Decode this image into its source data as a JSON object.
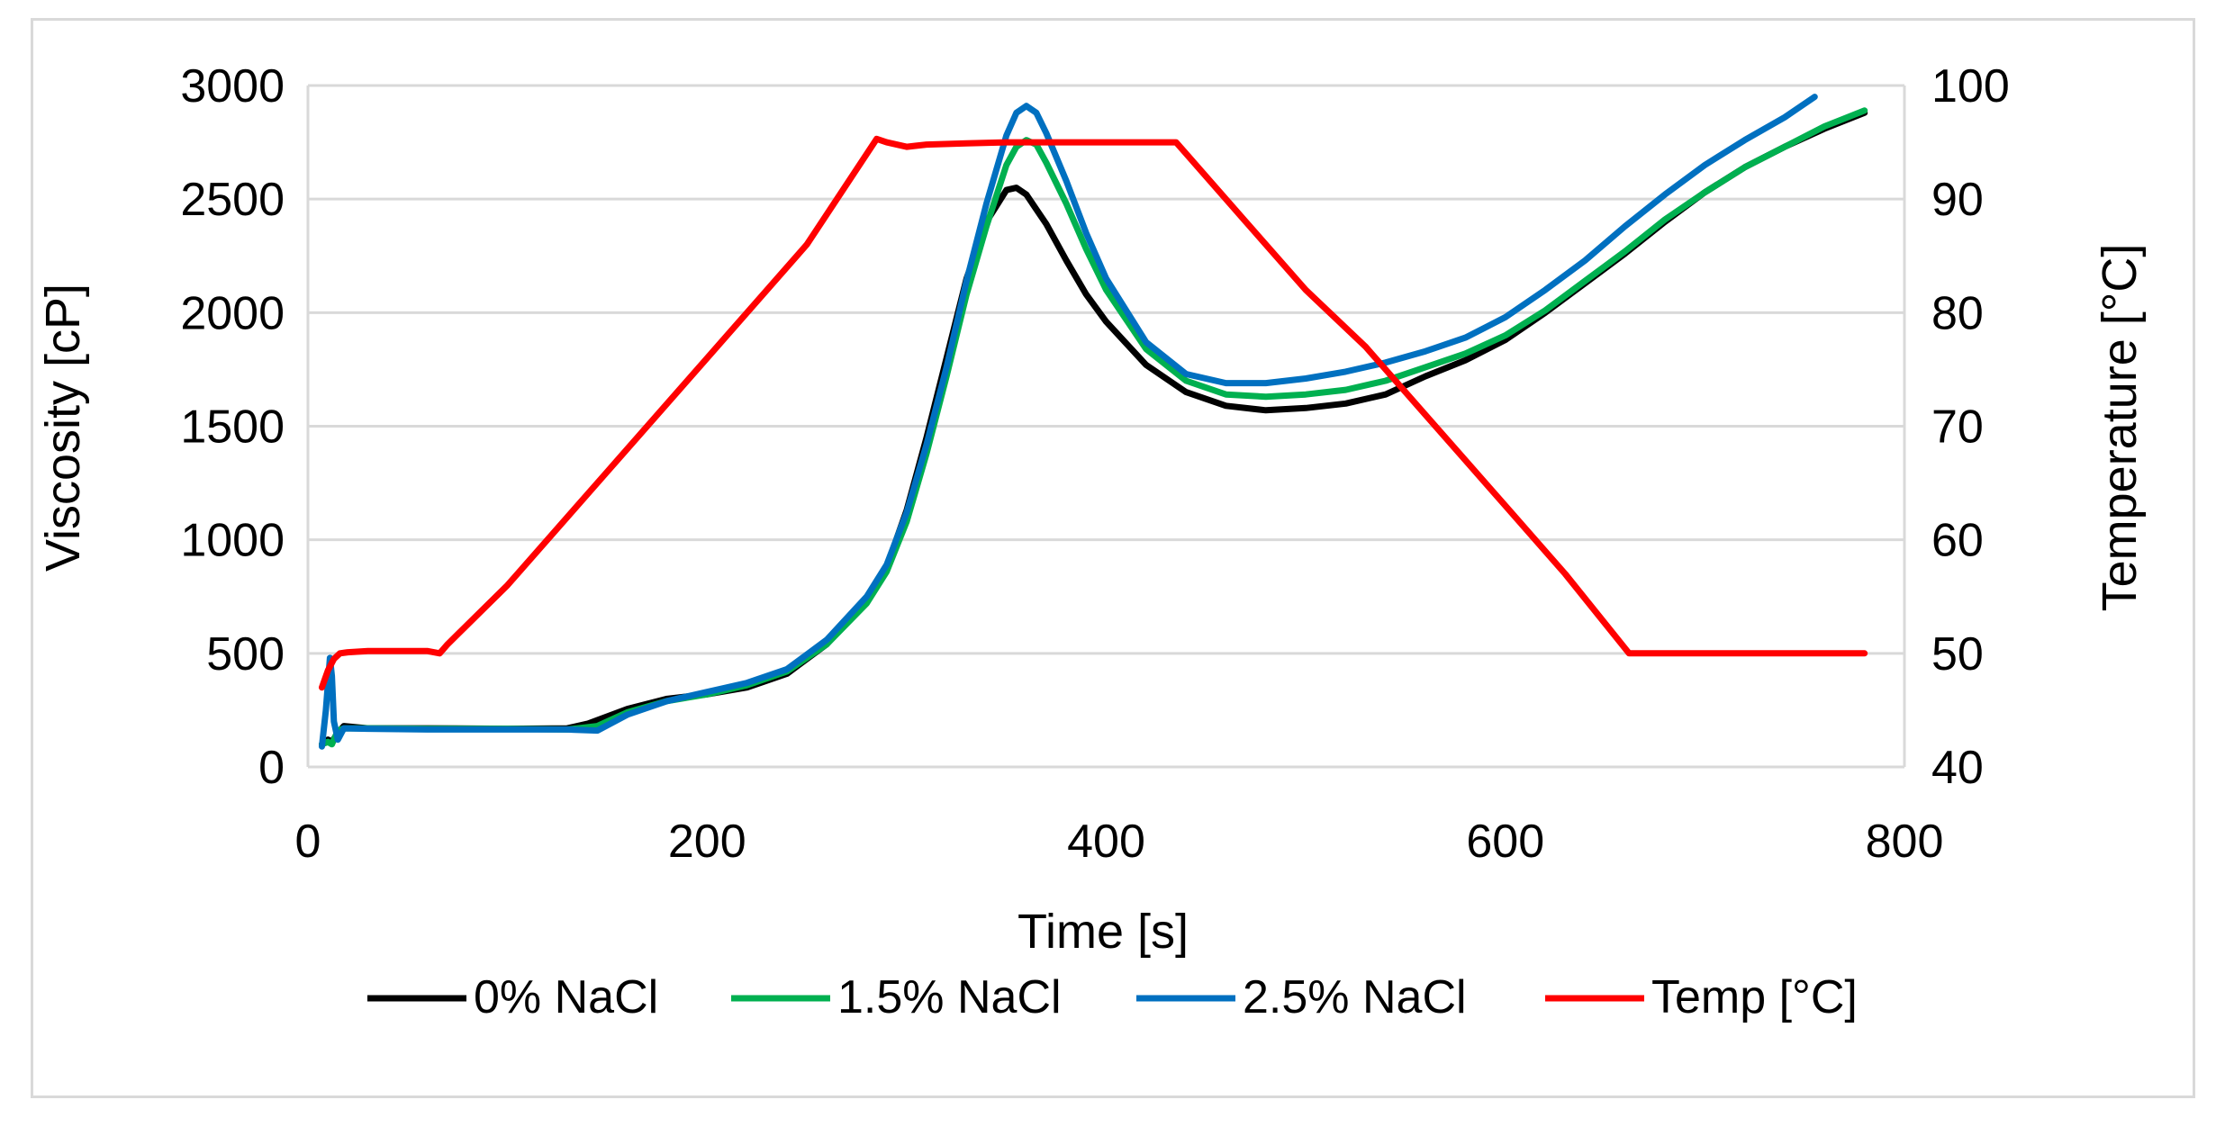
{
  "chart_data": {
    "type": "line",
    "title": "",
    "xlabel": "Time  [s]",
    "ylabel": "Viscosity [cP]",
    "y2label": "Temperature [°C]",
    "xlim": [
      0,
      800
    ],
    "ylim": [
      0,
      3000
    ],
    "y2lim": [
      40,
      100
    ],
    "xticks": [
      "0",
      "200",
      "400",
      "600",
      "800"
    ],
    "yticks": [
      "0",
      "500",
      "1000",
      "1500",
      "2000",
      "2500",
      "3000"
    ],
    "y2ticks": [
      "40",
      "50",
      "60",
      "70",
      "80",
      "90",
      "100"
    ],
    "grid": "horizontal",
    "legend_position": "bottom",
    "series": [
      {
        "name": "0% NaCl",
        "color": "#000000",
        "axis": "left",
        "x": [
          7,
          10,
          12,
          15,
          18,
          30,
          60,
          100,
          130,
          140,
          160,
          180,
          200,
          220,
          240,
          260,
          280,
          290,
          300,
          310,
          320,
          330,
          340,
          350,
          355,
          360,
          370,
          380,
          390,
          400,
          420,
          440,
          460,
          480,
          500,
          520,
          540,
          560,
          580,
          600,
          620,
          640,
          660,
          680,
          700,
          720,
          740,
          760,
          780
        ],
        "y": [
          100,
          120,
          110,
          150,
          180,
          170,
          170,
          168,
          170,
          190,
          255,
          300,
          320,
          350,
          410,
          540,
          740,
          880,
          1130,
          1450,
          1800,
          2150,
          2400,
          2540,
          2550,
          2520,
          2390,
          2230,
          2080,
          1960,
          1770,
          1650,
          1590,
          1570,
          1580,
          1600,
          1640,
          1720,
          1790,
          1880,
          2000,
          2130,
          2260,
          2400,
          2530,
          2640,
          2730,
          2810,
          2880
        ]
      },
      {
        "name": "1.5% NaCl",
        "color": "#00b050",
        "axis": "left",
        "x": [
          7,
          10,
          12,
          15,
          18,
          30,
          60,
          100,
          130,
          145,
          160,
          180,
          200,
          220,
          240,
          260,
          280,
          290,
          300,
          310,
          320,
          330,
          340,
          350,
          355,
          360,
          365,
          370,
          380,
          390,
          400,
          420,
          440,
          460,
          480,
          500,
          520,
          540,
          560,
          580,
          600,
          620,
          640,
          660,
          680,
          700,
          720,
          740,
          760,
          780
        ],
        "y": [
          100,
          110,
          100,
          160,
          170,
          170,
          168,
          168,
          165,
          180,
          240,
          290,
          320,
          360,
          420,
          540,
          720,
          860,
          1080,
          1380,
          1720,
          2080,
          2380,
          2650,
          2730,
          2760,
          2740,
          2660,
          2480,
          2280,
          2100,
          1840,
          1700,
          1640,
          1630,
          1640,
          1660,
          1700,
          1760,
          1820,
          1900,
          2010,
          2140,
          2270,
          2410,
          2530,
          2640,
          2730,
          2820,
          2890
        ]
      },
      {
        "name": "2.5% NaCl",
        "color": "#0070c0",
        "axis": "left",
        "x": [
          7,
          9,
          11,
          12,
          13,
          15,
          18,
          30,
          60,
          100,
          130,
          145,
          160,
          180,
          200,
          220,
          240,
          260,
          280,
          290,
          300,
          310,
          320,
          330,
          340,
          350,
          355,
          360,
          365,
          370,
          380,
          390,
          400,
          420,
          440,
          460,
          480,
          500,
          520,
          540,
          560,
          580,
          600,
          620,
          640,
          660,
          680,
          700,
          720,
          740,
          755
        ],
        "y": [
          90,
          250,
          480,
          400,
          200,
          120,
          170,
          168,
          165,
          165,
          165,
          160,
          230,
          290,
          330,
          370,
          430,
          560,
          750,
          890,
          1120,
          1420,
          1760,
          2140,
          2480,
          2780,
          2880,
          2910,
          2880,
          2790,
          2580,
          2350,
          2150,
          1870,
          1730,
          1690,
          1690,
          1710,
          1740,
          1780,
          1830,
          1890,
          1980,
          2100,
          2230,
          2380,
          2520,
          2650,
          2760,
          2860,
          2950
        ]
      },
      {
        "name": "Temp [°C]",
        "color": "#ff0000",
        "axis": "right",
        "x": [
          7,
          10,
          13,
          16,
          20,
          30,
          60,
          66,
          70,
          100,
          150,
          200,
          250,
          285,
          290,
          300,
          310,
          330,
          350,
          380,
          400,
          420,
          435,
          440,
          470,
          500,
          530,
          560,
          600,
          630,
          662,
          670,
          700,
          740,
          780
        ],
        "y": [
          47,
          48.5,
          49.5,
          50,
          50.1,
          50.2,
          50.2,
          50,
          50.8,
          56,
          66,
          76,
          86,
          95.3,
          95,
          94.6,
          94.8,
          94.9,
          95,
          95,
          95,
          95,
          95,
          94,
          88,
          82,
          77,
          71,
          63,
          57,
          50,
          50,
          50,
          50,
          50
        ]
      }
    ]
  }
}
